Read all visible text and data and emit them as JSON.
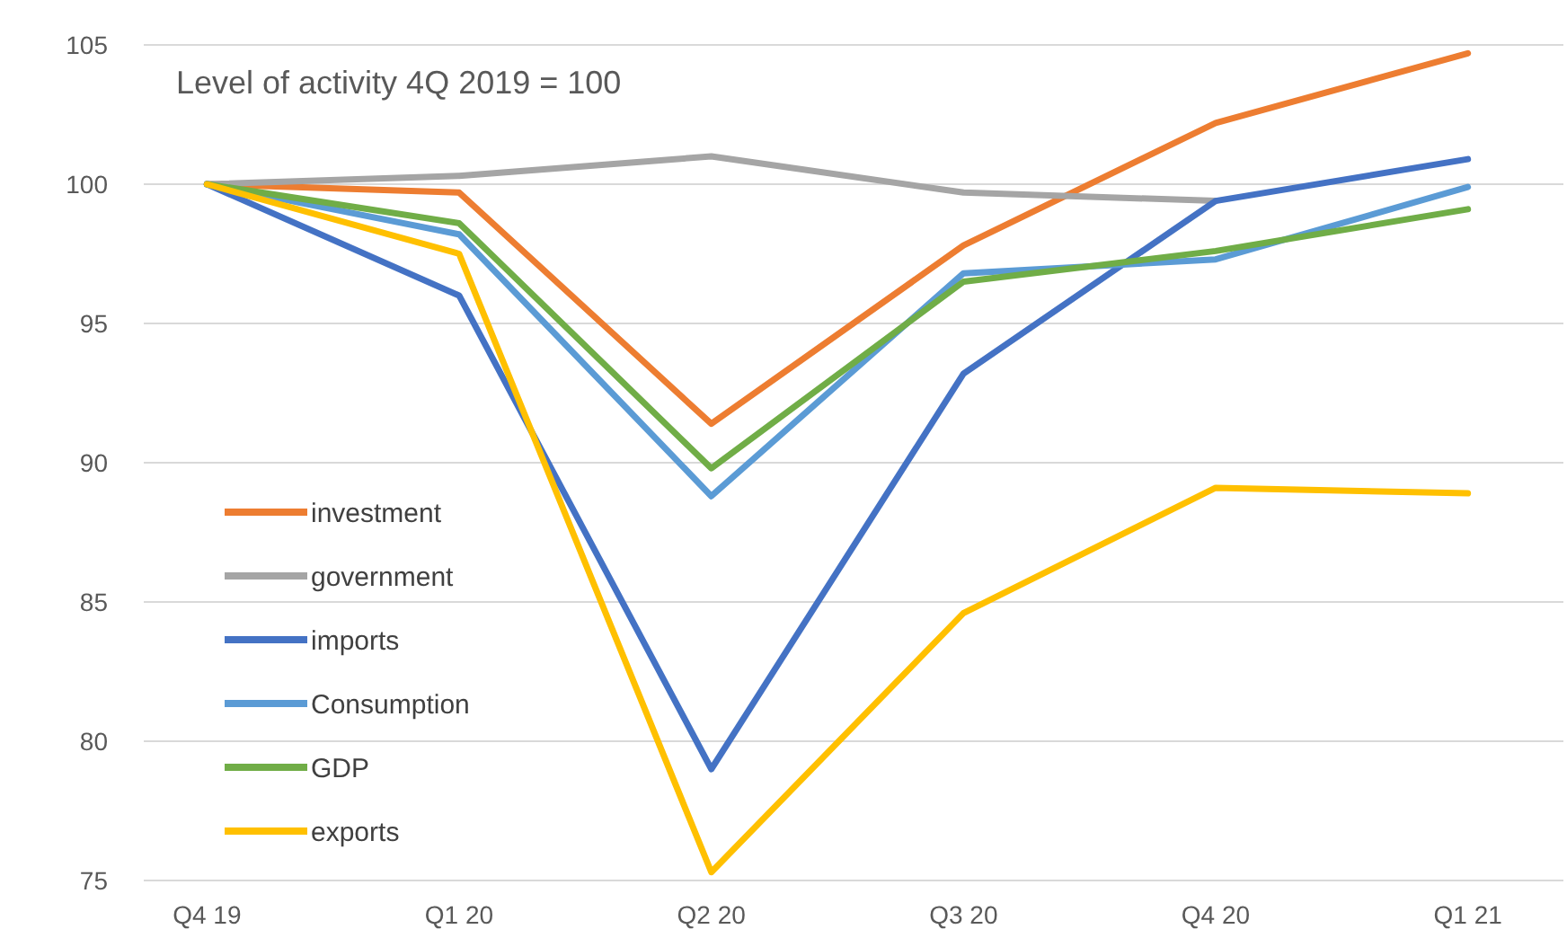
{
  "chart_data": {
    "type": "line",
    "title": "Level of activity 4Q 2019 = 100",
    "categories": [
      "Q4 19",
      "Q1 20",
      "Q2 20",
      "Q3 20",
      "Q4 20",
      "Q1 21"
    ],
    "series": [
      {
        "name": "investment",
        "color": "#ed7d31",
        "values": [
          100,
          99.7,
          91.4,
          97.8,
          102.2,
          104.7
        ]
      },
      {
        "name": "government",
        "color": "#a5a5a5",
        "values": [
          100,
          100.3,
          101.0,
          99.7,
          99.4,
          null
        ]
      },
      {
        "name": "imports",
        "color": "#4472c4",
        "values": [
          100,
          96.0,
          79.0,
          93.2,
          99.4,
          100.9
        ]
      },
      {
        "name": "Consumption",
        "color": "#5b9bd5",
        "values": [
          100,
          98.2,
          88.8,
          96.8,
          97.3,
          99.9
        ]
      },
      {
        "name": "GDP",
        "color": "#70ad47",
        "values": [
          100,
          98.6,
          89.8,
          96.5,
          97.6,
          99.1
        ]
      },
      {
        "name": "exports",
        "color": "#ffc000",
        "values": [
          100,
          97.5,
          75.3,
          84.6,
          89.1,
          88.9
        ]
      }
    ],
    "ylim": [
      75,
      105
    ],
    "yticks": [
      75,
      80,
      85,
      90,
      95,
      100,
      105
    ],
    "grid": "y",
    "legend": "left",
    "marker": "none",
    "line_style": "solid"
  }
}
